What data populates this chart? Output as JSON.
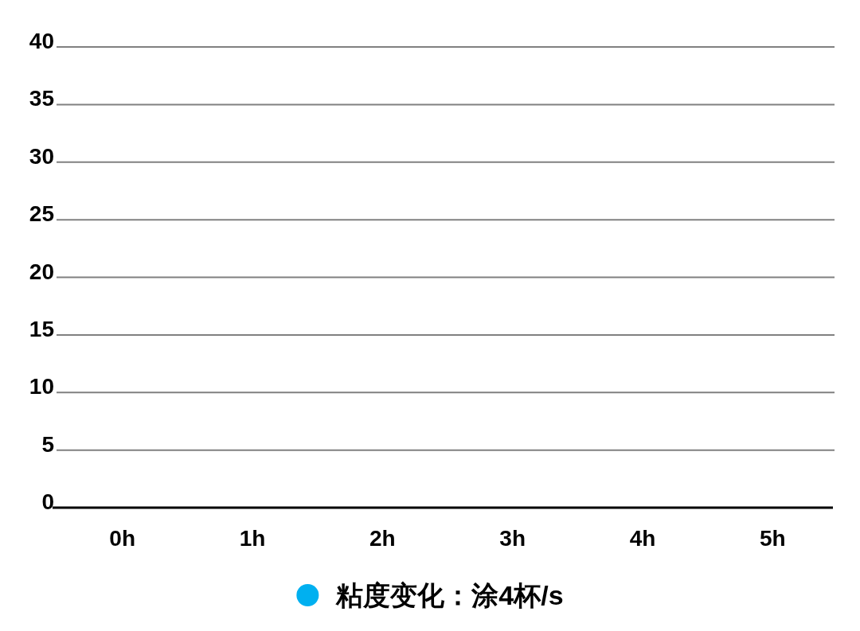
{
  "chart_data": {
    "type": "scatter",
    "categories": [
      "0h",
      "1h",
      "2h",
      "3h",
      "4h",
      "5h"
    ],
    "series": [
      {
        "name": "粘度变化：涂4杯/s",
        "color": "#00b0f0",
        "values": [
          null,
          null,
          null,
          null,
          null,
          null
        ]
      }
    ],
    "ylim": [
      0,
      40
    ],
    "yticks": [
      0,
      5,
      10,
      15,
      20,
      25,
      30,
      35,
      40
    ],
    "grid": "y",
    "legend": "bottom",
    "marker": "circle"
  }
}
